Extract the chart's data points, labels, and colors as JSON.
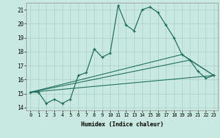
{
  "xlabel": "Humidex (Indice chaleur)",
  "xlim": [
    -0.5,
    23.5
  ],
  "ylim": [
    13.8,
    21.5
  ],
  "xticks": [
    0,
    1,
    2,
    3,
    4,
    5,
    6,
    7,
    8,
    9,
    10,
    11,
    12,
    13,
    14,
    15,
    16,
    17,
    18,
    19,
    20,
    21,
    22,
    23
  ],
  "yticks": [
    14,
    15,
    16,
    17,
    18,
    19,
    20,
    21
  ],
  "bg_color": "#c8e8e0",
  "grid_color": "#a8ccc4",
  "line_color": "#1a6b5a",
  "line1_x": [
    0,
    1,
    2,
    3,
    4,
    5,
    6,
    7,
    8,
    9,
    10,
    11,
    12,
    13,
    14,
    15,
    16,
    17,
    18,
    19,
    20,
    21,
    22,
    23
  ],
  "line1_y": [
    15.1,
    15.1,
    14.3,
    14.6,
    14.3,
    14.6,
    16.3,
    16.5,
    18.2,
    17.6,
    17.9,
    21.3,
    19.9,
    19.5,
    21.0,
    21.2,
    20.8,
    19.9,
    19.0,
    17.8,
    17.4,
    16.6,
    16.1,
    16.3
  ],
  "line2_x": [
    0,
    23
  ],
  "line2_y": [
    15.1,
    16.3
  ],
  "line3_x": [
    0,
    20,
    23
  ],
  "line3_y": [
    15.1,
    17.4,
    16.3
  ],
  "line4_x": [
    0,
    19,
    23
  ],
  "line4_y": [
    15.1,
    17.8,
    16.3
  ]
}
